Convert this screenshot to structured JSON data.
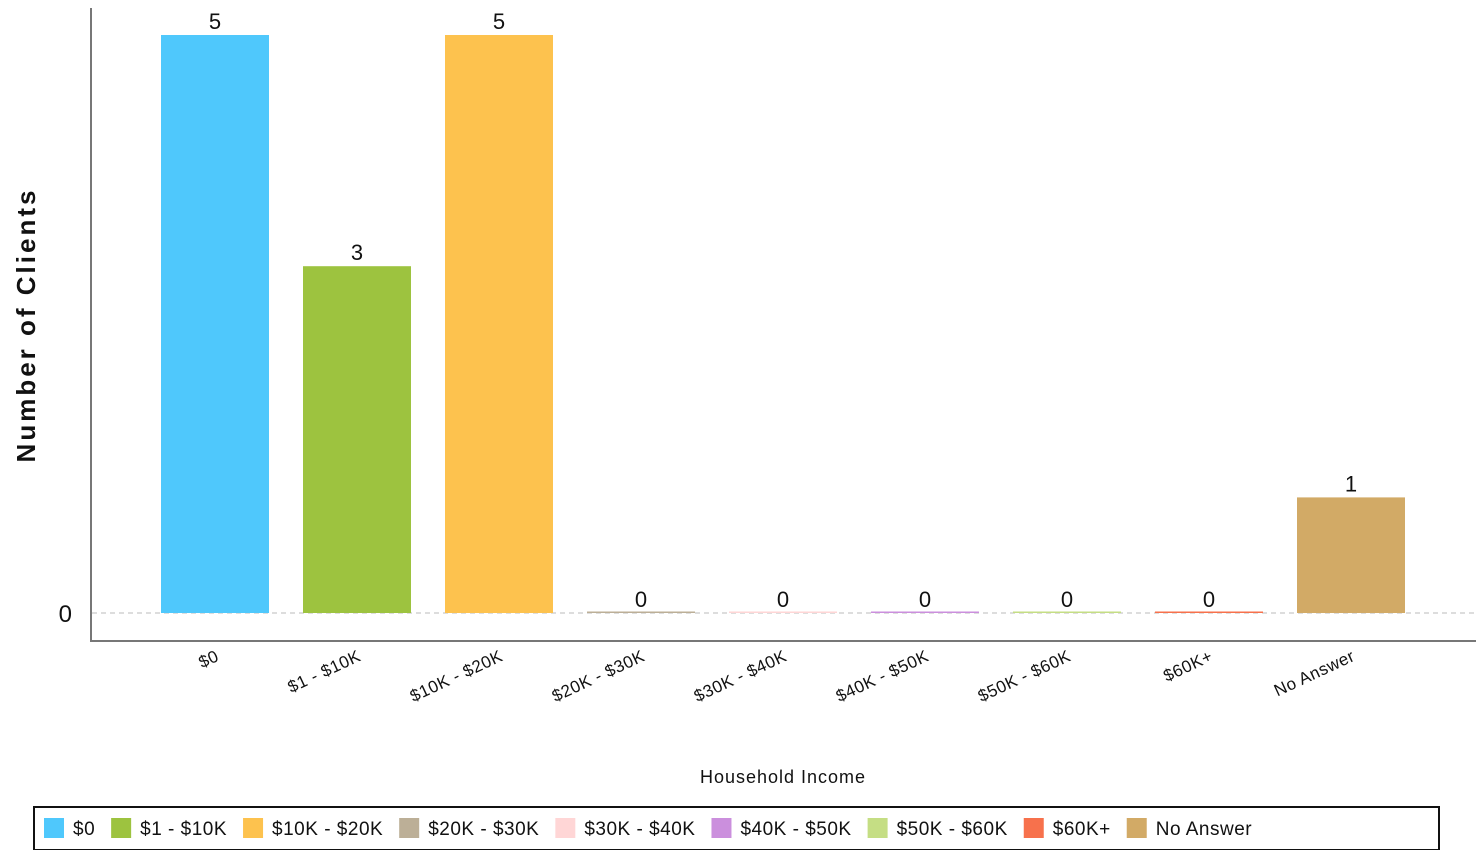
{
  "chart_data": {
    "type": "bar",
    "categories": [
      "$0",
      "$1 - $10K",
      "$10K - $20K",
      "$20K - $30K",
      "$30K - $40K",
      "$40K - $50K",
      "$50K - $60K",
      "$60K+",
      "No Answer"
    ],
    "values": [
      5,
      3,
      5,
      0,
      0,
      0,
      0,
      0,
      1
    ],
    "data_labels": [
      "5",
      "3",
      "5",
      "0",
      "0",
      "0",
      "0",
      "0",
      "1"
    ],
    "colors": [
      "#4FC8FC",
      "#9DC33F",
      "#FDC24E",
      "#BCAF97",
      "#FFD6D6",
      "#CB8FDD",
      "#C5DE84",
      "#F7714C",
      "#D2AA66"
    ],
    "xlabel": "Household Income",
    "ylabel": "Number of Clients",
    "yticks": [
      0
    ],
    "ytick_labels": [
      "0"
    ],
    "ylim": [
      0,
      5
    ],
    "grid": false,
    "legend_position": "bottom",
    "legend_entries": [
      "$0",
      "$1 - $10K",
      "$10K - $20K",
      "$20K - $30K",
      "$30K - $40K",
      "$40K - $50K",
      "$50K - $60K",
      "$60K+",
      "No Answer"
    ]
  }
}
